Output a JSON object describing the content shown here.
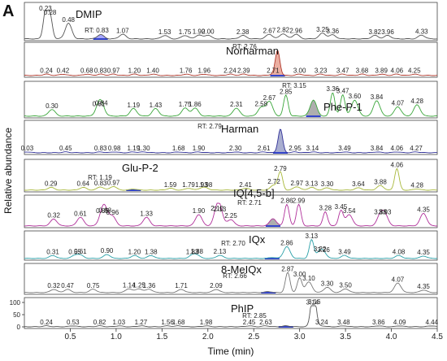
{
  "chart_data": {
    "type": "line",
    "panel_label": "A",
    "xlabel": "Time (min)",
    "ylabel": "Relative abundance",
    "xlim": [
      0,
      4.5
    ],
    "x_ticks": [
      "0.5",
      "1.0",
      "1.5",
      "2.0",
      "2.5",
      "3.0",
      "3.5",
      "4.0",
      "4.5"
    ],
    "y_ticks_last": [
      "100",
      "50",
      "0"
    ],
    "series": [
      {
        "name": "DMIP",
        "color": "#555555",
        "rt_label": "RT: 0.83",
        "rt": 0.83,
        "shade_color": "#9999ff",
        "peaks": [
          {
            "t": 0.23,
            "h": 0.95,
            "label": "0.23"
          },
          {
            "t": 0.28,
            "h": 0.8,
            "label": "0.28"
          },
          {
            "t": 0.48,
            "h": 0.55,
            "label": "0.48"
          },
          {
            "t": 0.83,
            "h": 0.15,
            "label": ""
          },
          {
            "t": 1.07,
            "h": 0.16,
            "label": "1.07"
          },
          {
            "t": 1.53,
            "h": 0.12,
            "label": "1.53"
          },
          {
            "t": 1.75,
            "h": 0.12,
            "label": "1.75"
          },
          {
            "t": 1.9,
            "h": 0.13,
            "label": "1.90"
          },
          {
            "t": 2.0,
            "h": 0.13,
            "label": "2.00"
          },
          {
            "t": 2.38,
            "h": 0.12,
            "label": "2.38"
          },
          {
            "t": 2.67,
            "h": 0.16,
            "label": "2.67"
          },
          {
            "t": 2.82,
            "h": 0.18,
            "label": "2.82"
          },
          {
            "t": 2.96,
            "h": 0.16,
            "label": "2.96"
          },
          {
            "t": 3.25,
            "h": 0.2,
            "label": "3.25"
          },
          {
            "t": 3.36,
            "h": 0.14,
            "label": "3.36"
          },
          {
            "t": 3.82,
            "h": 0.12,
            "label": "3.82"
          },
          {
            "t": 3.96,
            "h": 0.12,
            "label": "3.96"
          },
          {
            "t": 4.33,
            "h": 0.13,
            "label": "4.33"
          }
        ]
      },
      {
        "name": "Norharman",
        "color": "#b03a2e",
        "rt_label": "RT: 2.76",
        "rt": 2.76,
        "shade_color": "#e8a090",
        "peaks": [
          {
            "t": 0.24,
            "h": 0.05,
            "label": "0.24"
          },
          {
            "t": 0.42,
            "h": 0.05,
            "label": "0.42"
          },
          {
            "t": 0.68,
            "h": 0.05,
            "label": "0.68"
          },
          {
            "t": 0.83,
            "h": 0.05,
            "label": "0.83"
          },
          {
            "t": 0.97,
            "h": 0.05,
            "label": "0.97"
          },
          {
            "t": 1.2,
            "h": 0.05,
            "label": "1.20"
          },
          {
            "t": 1.4,
            "h": 0.05,
            "label": "1.40"
          },
          {
            "t": 1.76,
            "h": 0.05,
            "label": "1.76"
          },
          {
            "t": 1.96,
            "h": 0.05,
            "label": "1.96"
          },
          {
            "t": 2.24,
            "h": 0.05,
            "label": "2.24"
          },
          {
            "t": 2.39,
            "h": 0.05,
            "label": "2.39"
          },
          {
            "t": 2.71,
            "h": 0.05,
            "label": "2.71"
          },
          {
            "t": 2.76,
            "h": 0.97,
            "label": ""
          },
          {
            "t": 3.0,
            "h": 0.05,
            "label": "3.00"
          },
          {
            "t": 3.23,
            "h": 0.05,
            "label": "3.23"
          },
          {
            "t": 3.47,
            "h": 0.05,
            "label": "3.47"
          },
          {
            "t": 3.68,
            "h": 0.05,
            "label": "3.68"
          },
          {
            "t": 3.89,
            "h": 0.05,
            "label": "3.89"
          },
          {
            "t": 4.06,
            "h": 0.05,
            "label": "4.06"
          },
          {
            "t": 4.25,
            "h": 0.05,
            "label": "4.25"
          }
        ]
      },
      {
        "name": "Phe-P-1",
        "color": "#3aa63a",
        "rt_label": "RT: 3.15",
        "rt": 3.15,
        "shade_color": "#a0a0a0",
        "peaks": [
          {
            "t": 0.3,
            "h": 0.25,
            "label": "0.30"
          },
          {
            "t": 0.81,
            "h": 0.32,
            "label": "0.81"
          },
          {
            "t": 0.84,
            "h": 0.35,
            "label": "0.84"
          },
          {
            "t": 1.19,
            "h": 0.28,
            "label": "1.19"
          },
          {
            "t": 1.43,
            "h": 0.28,
            "label": "1.43"
          },
          {
            "t": 1.75,
            "h": 0.3,
            "label": "1.75"
          },
          {
            "t": 1.86,
            "h": 0.3,
            "label": "1.86"
          },
          {
            "t": 2.31,
            "h": 0.3,
            "label": "2.31"
          },
          {
            "t": 2.58,
            "h": 0.32,
            "label": "2.58"
          },
          {
            "t": 2.67,
            "h": 0.55,
            "label": "2.67"
          },
          {
            "t": 2.85,
            "h": 0.78,
            "label": "2.85"
          },
          {
            "t": 3.15,
            "h": 0.6,
            "label": ""
          },
          {
            "t": 3.36,
            "h": 0.88,
            "label": "3.36"
          },
          {
            "t": 3.47,
            "h": 0.8,
            "label": "3.47"
          },
          {
            "t": 3.6,
            "h": 0.6,
            "label": "3.60"
          },
          {
            "t": 3.84,
            "h": 0.58,
            "label": "3.84"
          },
          {
            "t": 4.07,
            "h": 0.35,
            "label": "4.07"
          },
          {
            "t": 4.28,
            "h": 0.42,
            "label": "4.28"
          }
        ]
      },
      {
        "name": "Harman",
        "color": "#333399",
        "rt_label": "RT: 2.79",
        "rt": 2.79,
        "shade_color": "#9aa0c8",
        "peaks": [
          {
            "t": 0.03,
            "h": 0.03,
            "label": "0.03"
          },
          {
            "t": 0.45,
            "h": 0.03,
            "label": "0.45"
          },
          {
            "t": 0.83,
            "h": 0.03,
            "label": "0.83"
          },
          {
            "t": 0.98,
            "h": 0.03,
            "label": "0.98"
          },
          {
            "t": 1.19,
            "h": 0.03,
            "label": "1.19"
          },
          {
            "t": 1.3,
            "h": 0.03,
            "label": "1.30"
          },
          {
            "t": 1.68,
            "h": 0.03,
            "label": "1.68"
          },
          {
            "t": 1.9,
            "h": 0.03,
            "label": "1.90"
          },
          {
            "t": 2.3,
            "h": 0.03,
            "label": "2.30"
          },
          {
            "t": 2.61,
            "h": 0.03,
            "label": "2.61"
          },
          {
            "t": 2.79,
            "h": 0.97,
            "label": ""
          },
          {
            "t": 2.95,
            "h": 0.03,
            "label": "2.95"
          },
          {
            "t": 3.14,
            "h": 0.03,
            "label": "3.14"
          },
          {
            "t": 3.49,
            "h": 0.03,
            "label": "3.49"
          },
          {
            "t": 3.84,
            "h": 0.03,
            "label": "3.84"
          },
          {
            "t": 4.06,
            "h": 0.03,
            "label": "4.06"
          },
          {
            "t": 4.27,
            "h": 0.03,
            "label": "4.27"
          }
        ]
      },
      {
        "name": "Glu-P-2",
        "color": "#a8b83a",
        "rt_label": "RT: 1.19",
        "rt": 1.19,
        "shade_color": "#9999ff",
        "peaks": [
          {
            "t": 0.29,
            "h": 0.12,
            "label": "0.29"
          },
          {
            "t": 0.64,
            "h": 0.12,
            "label": "0.64"
          },
          {
            "t": 0.83,
            "h": 0.14,
            "label": "0.83"
          },
          {
            "t": 0.97,
            "h": 0.16,
            "label": "0.97"
          },
          {
            "t": 1.19,
            "h": 0.05,
            "label": ""
          },
          {
            "t": 1.59,
            "h": 0.08,
            "label": "1.59"
          },
          {
            "t": 1.79,
            "h": 0.08,
            "label": "1.79"
          },
          {
            "t": 1.93,
            "h": 0.08,
            "label": "1.93"
          },
          {
            "t": 1.98,
            "h": 0.08,
            "label": "1.98"
          },
          {
            "t": 2.41,
            "h": 0.08,
            "label": "2.41"
          },
          {
            "t": 2.72,
            "h": 0.22,
            "label": "2.72"
          },
          {
            "t": 2.79,
            "h": 0.78,
            "label": "2.79"
          },
          {
            "t": 2.97,
            "h": 0.15,
            "label": "2.97"
          },
          {
            "t": 3.13,
            "h": 0.12,
            "label": "3.13"
          },
          {
            "t": 3.3,
            "h": 0.1,
            "label": "3.30"
          },
          {
            "t": 3.64,
            "h": 0.1,
            "label": "3.64"
          },
          {
            "t": 3.88,
            "h": 0.2,
            "label": "3.88"
          },
          {
            "t": 4.06,
            "h": 0.95,
            "label": "4.06"
          },
          {
            "t": 4.28,
            "h": 0.05,
            "label": "4.28"
          }
        ]
      },
      {
        "name": "IQ[4,5-b]",
        "color": "#b0309a",
        "rt_label": "RT: 2.71",
        "rt": 2.71,
        "shade_color": "#a0a0a0",
        "peaks": [
          {
            "t": 0.32,
            "h": 0.3,
            "label": "0.32"
          },
          {
            "t": 0.61,
            "h": 0.38,
            "label": "0.61"
          },
          {
            "t": 0.85,
            "h": 0.5,
            "label": "0.85"
          },
          {
            "t": 0.88,
            "h": 0.52,
            "label": "0.88"
          },
          {
            "t": 0.96,
            "h": 0.42,
            "label": "0.96"
          },
          {
            "t": 1.33,
            "h": 0.38,
            "label": "1.33"
          },
          {
            "t": 1.9,
            "h": 0.5,
            "label": "1.90"
          },
          {
            "t": 2.1,
            "h": 0.6,
            "label": "2.10"
          },
          {
            "t": 2.13,
            "h": 0.58,
            "label": "2.13"
          },
          {
            "t": 2.25,
            "h": 0.28,
            "label": "2.25"
          },
          {
            "t": 2.71,
            "h": 0.32,
            "label": ""
          },
          {
            "t": 2.86,
            "h": 0.95,
            "label": "2.86"
          },
          {
            "t": 2.99,
            "h": 0.95,
            "label": "2.99"
          },
          {
            "t": 3.28,
            "h": 0.62,
            "label": "3.28"
          },
          {
            "t": 3.45,
            "h": 0.68,
            "label": "3.45"
          },
          {
            "t": 3.54,
            "h": 0.5,
            "label": "3.54"
          },
          {
            "t": 3.88,
            "h": 0.45,
            "label": "3.88"
          },
          {
            "t": 3.93,
            "h": 0.45,
            "label": "3.93"
          },
          {
            "t": 4.35,
            "h": 0.55,
            "label": "4.35"
          }
        ]
      },
      {
        "name": "IQx",
        "color": "#2aa0a8",
        "rt_label": "RT: 2.70",
        "rt": 2.7,
        "shade_color": "#9999ff",
        "peaks": [
          {
            "t": 0.31,
            "h": 0.15,
            "label": "0.31"
          },
          {
            "t": 0.55,
            "h": 0.15,
            "label": "0.55"
          },
          {
            "t": 0.61,
            "h": 0.16,
            "label": "0.61"
          },
          {
            "t": 0.9,
            "h": 0.2,
            "label": "0.90"
          },
          {
            "t": 1.2,
            "h": 0.15,
            "label": "1.20"
          },
          {
            "t": 1.38,
            "h": 0.15,
            "label": "1.38"
          },
          {
            "t": 1.83,
            "h": 0.15,
            "label": "1.83"
          },
          {
            "t": 1.88,
            "h": 0.16,
            "label": "1.88"
          },
          {
            "t": 2.13,
            "h": 0.16,
            "label": "2.13"
          },
          {
            "t": 2.7,
            "h": 0.05,
            "label": ""
          },
          {
            "t": 2.86,
            "h": 0.6,
            "label": "2.86"
          },
          {
            "t": 3.13,
            "h": 0.95,
            "label": "3.13"
          },
          {
            "t": 3.22,
            "h": 0.3,
            "label": "3.22"
          },
          {
            "t": 3.26,
            "h": 0.26,
            "label": "3.26"
          },
          {
            "t": 3.49,
            "h": 0.15,
            "label": "3.49"
          },
          {
            "t": 4.08,
            "h": 0.15,
            "label": "4.08"
          },
          {
            "t": 4.35,
            "h": 0.12,
            "label": "4.35"
          }
        ]
      },
      {
        "name": "8-MeIQx",
        "color": "#777777",
        "rt_label": "RT: 2.66",
        "rt": 2.66,
        "shade_color": "#9999ff",
        "peaks": [
          {
            "t": 0.32,
            "h": 0.15,
            "label": "0.32"
          },
          {
            "t": 0.47,
            "h": 0.15,
            "label": "0.47"
          },
          {
            "t": 0.75,
            "h": 0.16,
            "label": "0.75"
          },
          {
            "t": 1.14,
            "h": 0.18,
            "label": "1.14"
          },
          {
            "t": 1.25,
            "h": 0.18,
            "label": "1.25"
          },
          {
            "t": 1.36,
            "h": 0.16,
            "label": "1.36"
          },
          {
            "t": 1.71,
            "h": 0.15,
            "label": "1.71"
          },
          {
            "t": 2.09,
            "h": 0.15,
            "label": "2.09"
          },
          {
            "t": 2.66,
            "h": 0.05,
            "label": ""
          },
          {
            "t": 2.87,
            "h": 0.95,
            "label": "2.87"
          },
          {
            "t": 3.0,
            "h": 0.7,
            "label": "3.00"
          },
          {
            "t": 3.1,
            "h": 0.5,
            "label": "3.10"
          },
          {
            "t": 3.3,
            "h": 0.25,
            "label": "3.30"
          },
          {
            "t": 3.5,
            "h": 0.18,
            "label": "3.50"
          },
          {
            "t": 4.07,
            "h": 0.45,
            "label": "4.07"
          },
          {
            "t": 4.35,
            "h": 0.12,
            "label": "4.35"
          }
        ]
      },
      {
        "name": "PhIP",
        "color": "#555555",
        "rt_label": "RT: 2.85",
        "rt": 2.85,
        "shade_color": "#9999ff",
        "peaks": [
          {
            "t": 0.24,
            "h": 0.04,
            "label": "0.24"
          },
          {
            "t": 0.53,
            "h": 0.04,
            "label": "0.53"
          },
          {
            "t": 0.82,
            "h": 0.04,
            "label": "0.82"
          },
          {
            "t": 1.03,
            "h": 0.04,
            "label": "1.03"
          },
          {
            "t": 1.27,
            "h": 0.04,
            "label": "1.27"
          },
          {
            "t": 1.56,
            "h": 0.04,
            "label": "1.56"
          },
          {
            "t": 1.68,
            "h": 0.04,
            "label": "1.68"
          },
          {
            "t": 1.98,
            "h": 0.04,
            "label": "1.98"
          },
          {
            "t": 2.45,
            "h": 0.04,
            "label": "2.45"
          },
          {
            "t": 2.63,
            "h": 0.04,
            "label": "2.63"
          },
          {
            "t": 2.85,
            "h": 0.04,
            "label": ""
          },
          {
            "t": 3.14,
            "h": 0.98,
            "label": "3.14"
          },
          {
            "t": 3.16,
            "h": 1.0,
            "label": "3.16"
          },
          {
            "t": 3.24,
            "h": 0.04,
            "label": "3.24"
          },
          {
            "t": 3.48,
            "h": 0.04,
            "label": "3.48"
          },
          {
            "t": 3.86,
            "h": 0.04,
            "label": "3.86"
          },
          {
            "t": 4.09,
            "h": 0.04,
            "label": "4.09"
          },
          {
            "t": 4.44,
            "h": 0.04,
            "label": "4.44"
          }
        ]
      }
    ]
  }
}
